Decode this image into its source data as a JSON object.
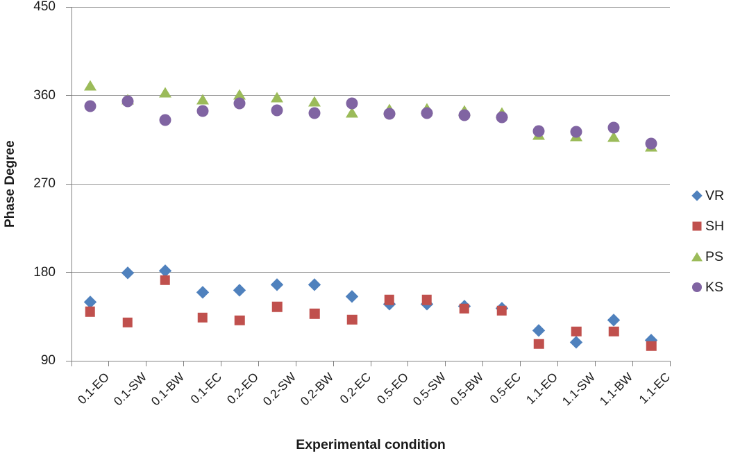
{
  "chart_data": {
    "type": "scatter",
    "xlabel": "Experimental condition",
    "ylabel": "Phase Degree",
    "ylim": [
      90,
      450
    ],
    "yticks": [
      90,
      180,
      270,
      360,
      450
    ],
    "grid": "horizontal",
    "legend_position": "right",
    "categories": [
      "0.1-EO",
      "0.1-SW",
      "0.1-BW",
      "0.1-EC",
      "0.2-EO",
      "0.2-SW",
      "0.2-BW",
      "0.2-EC",
      "0.5-EO",
      "0.5-SW",
      "0.5-BW",
      "0.5-EC",
      "1.1-EO",
      "1.1-SW",
      "1.1-BW",
      "1.1-EC"
    ],
    "series": [
      {
        "name": "VR",
        "marker": "diamond",
        "color": "#4F81BD",
        "values": [
          150,
          180,
          182,
          160,
          162,
          168,
          168,
          156,
          148,
          148,
          146,
          144,
          121,
          109,
          132,
          111
        ]
      },
      {
        "name": "SH",
        "marker": "square",
        "color": "#C0504D",
        "values": [
          140,
          129,
          172,
          134,
          131,
          145,
          138,
          132,
          152,
          152,
          143,
          141,
          107,
          120,
          120,
          105
        ]
      },
      {
        "name": "PS",
        "marker": "triangle",
        "color": "#9BBB59",
        "values": [
          370,
          356,
          363,
          356,
          361,
          358,
          354,
          343,
          346,
          347,
          345,
          343,
          320,
          319,
          318,
          308
        ]
      },
      {
        "name": "KS",
        "marker": "circle",
        "color": "#8064A2",
        "values": [
          349,
          354,
          335,
          344,
          352,
          345,
          342,
          352,
          341,
          342,
          340,
          338,
          324,
          323,
          327,
          311
        ]
      }
    ]
  }
}
